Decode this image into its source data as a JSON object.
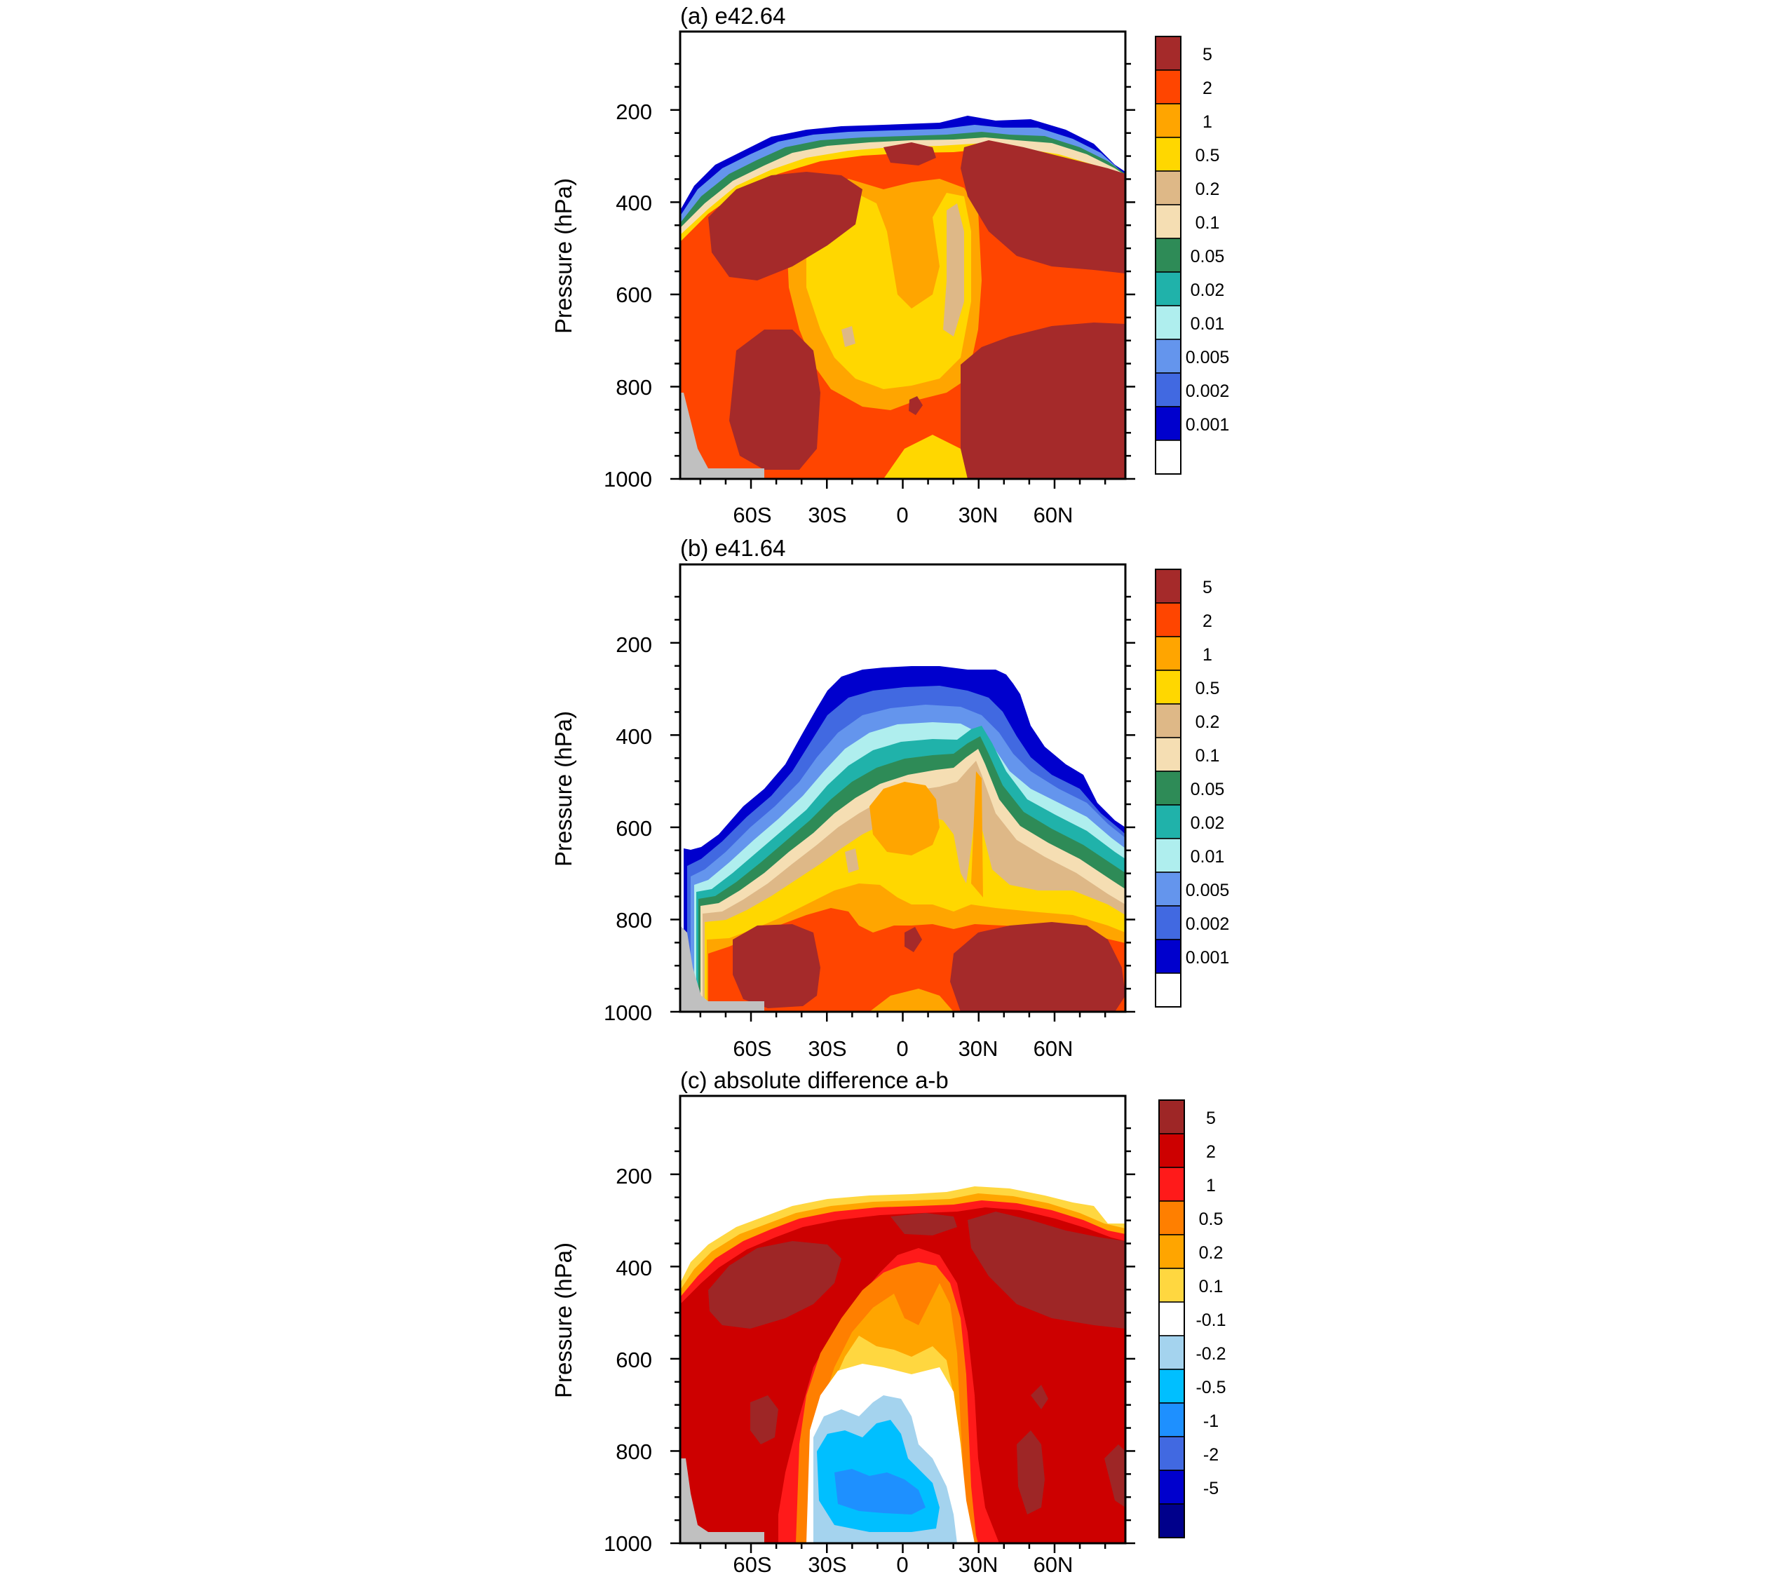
{
  "figure": {
    "background": "#ffffff"
  },
  "chart_data": [
    {
      "type": "contour",
      "title": "(a) e42.64",
      "ylabel": "Pressure (hPa)",
      "xlabel": "",
      "x_ticks": [
        "60S",
        "30S",
        "0",
        "30N",
        "60N"
      ],
      "x_tick_values": [
        -60,
        -30,
        0,
        30,
        60
      ],
      "y_ticks": [
        "200",
        "400",
        "600",
        "800",
        "1000"
      ],
      "y_tick_values": [
        200,
        400,
        600,
        800,
        1000
      ],
      "xlim": [
        -88,
        88
      ],
      "ylim": [
        1000,
        30
      ],
      "colorbar": {
        "labels": [
          "5",
          "2",
          "1",
          "0.5",
          "0.2",
          "0.1",
          "0.05",
          "0.02",
          "0.01",
          "0.005",
          "0.002",
          "0.001"
        ],
        "colors": [
          "#a52a2a",
          "#ff4500",
          "#ffa500",
          "#ffd700",
          "#deb887",
          "#f5deb3",
          "#2e8b57",
          "#20b2aa",
          "#afeeee",
          "#6495ed",
          "#4169e1",
          "#0000cd",
          "#ffffff"
        ]
      },
      "regions": [
        {
          "level": "0.001",
          "top_hPa": 210,
          "note": "model top edge"
        },
        {
          "level": "0.5",
          "top_hPa": 260,
          "note": "above 0.5 nearly everywhere below ~260 hPa"
        },
        {
          "level": "5",
          "note": "maxima near 400 hPa 45S-20S, 60S 700-1000 hPa, 20N-88N above 500 hPa and below 650 hPa"
        }
      ]
    },
    {
      "type": "contour",
      "title": "(b) e41.64",
      "ylabel": "Pressure (hPa)",
      "xlabel": "",
      "x_ticks": [
        "60S",
        "30S",
        "0",
        "30N",
        "60N"
      ],
      "x_tick_values": [
        -60,
        -30,
        0,
        30,
        60
      ],
      "y_ticks": [
        "200",
        "400",
        "600",
        "800",
        "1000"
      ],
      "y_tick_values": [
        200,
        400,
        600,
        800,
        1000
      ],
      "xlim": [
        -88,
        88
      ],
      "ylim": [
        1000,
        30
      ],
      "colorbar": {
        "labels": [
          "5",
          "2",
          "1",
          "0.5",
          "0.2",
          "0.1",
          "0.05",
          "0.02",
          "0.01",
          "0.005",
          "0.002",
          "0.001"
        ],
        "colors": [
          "#a52a2a",
          "#ff4500",
          "#ffa500",
          "#ffd700",
          "#deb887",
          "#f5deb3",
          "#2e8b57",
          "#20b2aa",
          "#afeeee",
          "#6495ed",
          "#4169e1",
          "#0000cd",
          "#ffffff"
        ]
      },
      "regions": [
        {
          "level": "0.001",
          "top_hPa": 250,
          "note": "dome shaped, top ~250 hPa in tropics, ~650 hPa at 85S"
        },
        {
          "level": "5",
          "note": "low-level maxima 60S and 30N-80N between 750 and 1000 hPa"
        }
      ]
    },
    {
      "type": "contour",
      "title": "(c) absolute difference a-b",
      "ylabel": "Pressure (hPa)",
      "xlabel": "",
      "x_ticks": [
        "60S",
        "30S",
        "0",
        "30N",
        "60N"
      ],
      "x_tick_values": [
        -60,
        -30,
        0,
        30,
        60
      ],
      "y_ticks": [
        "200",
        "400",
        "600",
        "800",
        "1000"
      ],
      "y_tick_values": [
        200,
        400,
        600,
        800,
        1000
      ],
      "xlim": [
        -88,
        88
      ],
      "ylim": [
        1000,
        30
      ],
      "colorbar": {
        "labels": [
          "5",
          "2",
          "1",
          "0.5",
          "0.2",
          "0.1",
          "-0.1",
          "-0.2",
          "-0.5",
          "-1",
          "-2",
          "-5"
        ],
        "colors": [
          "#9e2626",
          "#cd0000",
          "#ff1a1a",
          "#ff7f00",
          "#ffa500",
          "#ffd740",
          "#ffffff",
          "#a4d3ee",
          "#00bfff",
          "#1e90ff",
          "#4169e1",
          "#0000cd",
          "#00008b"
        ]
      },
      "regions": [
        {
          "level": "5",
          "note": "positive maxima 80S-40S 300-500 hPa and 20N-88N above 550 hPa"
        },
        {
          "level": "-0.5",
          "note": "negative differences 30S-25N between 650 and 1000 hPa"
        }
      ]
    }
  ]
}
